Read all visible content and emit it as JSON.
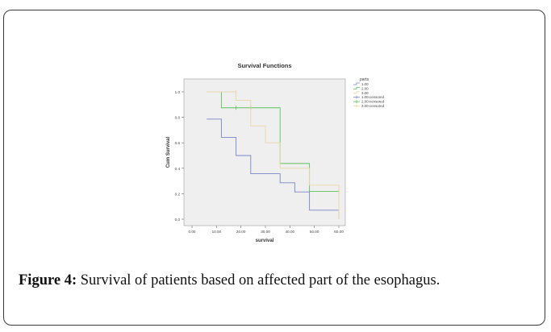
{
  "figure": {
    "label": "Figure 4:",
    "caption": "Survival of patients based on affected part of the esophagus."
  },
  "chart_data": {
    "type": "line",
    "step": true,
    "title": "Survival Functions",
    "xlabel": "survival",
    "ylabel": "Cum Survival",
    "xlim": [
      0,
      60
    ],
    "ylim": [
      0,
      1
    ],
    "xticks": [
      "0.00",
      "10.00",
      "20.00",
      "30.00",
      "40.00",
      "50.00",
      "60.00"
    ],
    "yticks": [
      "0.0",
      "0.2",
      "0.4",
      "0.6",
      "0.8",
      "1.0"
    ],
    "grid": false,
    "legend": {
      "title": "parts",
      "position": "right",
      "entries": [
        "1.00",
        "2.00",
        "3.00",
        "1.00-censored",
        "2.00-censored",
        "3.00-censored"
      ]
    },
    "series": [
      {
        "name": "1.00",
        "color": "#7a84c6",
        "x": [
          6,
          12,
          18,
          24,
          36,
          42,
          48,
          60
        ],
        "y": [
          0.786,
          0.643,
          0.5,
          0.357,
          0.286,
          0.214,
          0.071,
          0
        ],
        "censored": []
      },
      {
        "name": "2.00",
        "color": "#5cc15c",
        "x": [
          6,
          12,
          36,
          48,
          60
        ],
        "y": [
          1.0,
          0.875,
          0.4375,
          0.219,
          0.219
        ],
        "censored": [
          {
            "x": 18,
            "y": 0.875
          },
          {
            "x": 24,
            "y": 0.875
          },
          {
            "x": 60,
            "y": 0.219
          }
        ]
      },
      {
        "name": "3.00",
        "color": "#e8d7a8",
        "x": [
          6,
          12,
          18,
          24,
          30,
          36,
          48,
          60
        ],
        "y": [
          1.0,
          1.0,
          0.933,
          0.733,
          0.6,
          0.4,
          0.267,
          0
        ],
        "censored": [
          {
            "x": 18,
            "y": 1.0
          }
        ]
      }
    ]
  }
}
